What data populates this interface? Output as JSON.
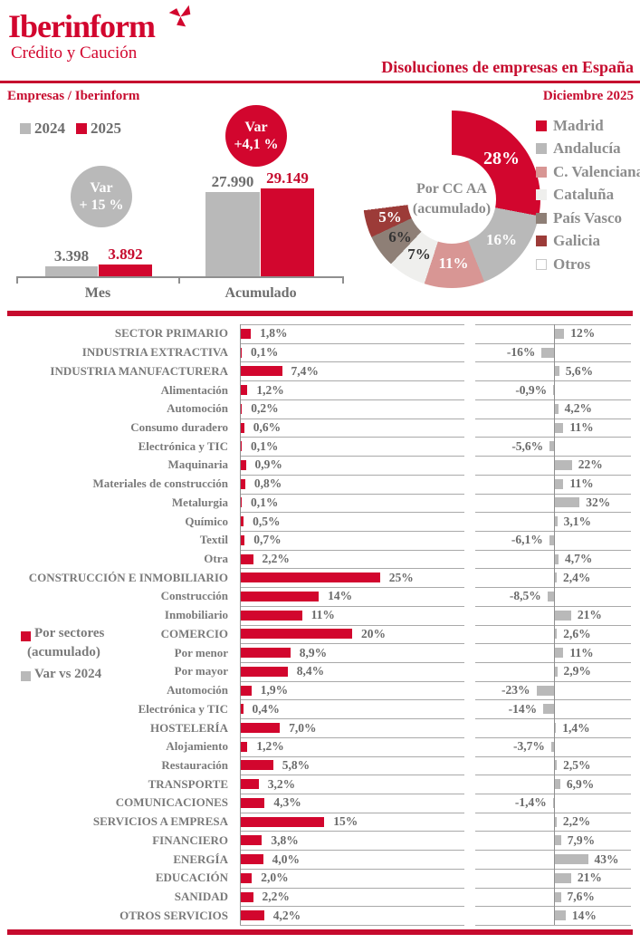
{
  "header": {
    "logo": "Iberinform",
    "logo_sub": "Crédito y Caución",
    "title": "Disoluciones de empresas en España",
    "left_sub": "Empresas / Iberinform",
    "right_sub": "Diciembre 2025"
  },
  "colors": {
    "brand_red": "#d2062e",
    "gray_bar": "#b9b9b9",
    "rose": "#d89694",
    "light_gray": "#efefed",
    "taupe": "#8e7f76",
    "maroon": "#9c3b38",
    "white": "#ffffff"
  },
  "chart_data": [
    {
      "type": "bar",
      "title": "Empresas / Iberinform",
      "categories": [
        "Mes",
        "Acumulado"
      ],
      "series": [
        {
          "name": "2024",
          "values": [
            3398,
            27990
          ],
          "labels": [
            "3.398",
            "27.990"
          ],
          "color": "#b9b9b9"
        },
        {
          "name": "2025",
          "values": [
            3892,
            29149
          ],
          "labels": [
            "3.892",
            "29.149"
          ],
          "color": "#d2062e"
        }
      ],
      "ylim": [
        0,
        29149
      ],
      "annotations": [
        {
          "line1": "Var",
          "line2": "+ 15 %",
          "group": "Mes",
          "color": "#b9b9b9"
        },
        {
          "line1": "Var",
          "line2": "+4,1 %",
          "group": "Acumulado",
          "color": "#d2062e"
        }
      ]
    },
    {
      "type": "pie",
      "center_label_line1": "Por CC AA",
      "center_label_line2": "(acumulado)",
      "labels": [
        "Madrid",
        "Andalucía",
        "C. Valenciana",
        "Cataluña",
        "País Vasco",
        "Galicia",
        "Otros"
      ],
      "values": [
        28,
        16,
        11,
        7,
        6,
        5,
        27
      ],
      "slice_labels": [
        "28%",
        "16%",
        "11%",
        "7%",
        "6%",
        "5%",
        ""
      ],
      "slice_colors": [
        "#d2062e",
        "#b9b9b9",
        "#d89694",
        "#efefed",
        "#8e7f76",
        "#9c3b38",
        "#ffffff"
      ],
      "slice_label_dark": [
        false,
        false,
        false,
        true,
        true,
        false,
        false
      ],
      "legend_position": "right"
    },
    {
      "type": "bar",
      "orientation": "horizontal",
      "legend": {
        "series1_line1": "Por sectores",
        "series1_line2": "(acumulado)",
        "series2": "Var vs 2024"
      },
      "rows": [
        {
          "label": "SECTOR PRIMARIO",
          "pct": 1.8,
          "pct_label": "1,8%",
          "var": 12,
          "var_label": "12%"
        },
        {
          "label": "INDUSTRIA EXTRACTIVA",
          "pct": 0.1,
          "pct_label": "0,1%",
          "var": -16,
          "var_label": "-16%"
        },
        {
          "label": "INDUSTRIA MANUFACTURERA",
          "pct": 7.4,
          "pct_label": "7,4%",
          "var": 5.6,
          "var_label": "5,6%"
        },
        {
          "label": "Alimentación",
          "pct": 1.2,
          "pct_label": "1,2%",
          "var": -0.9,
          "var_label": "-0,9%"
        },
        {
          "label": "Automoción",
          "pct": 0.2,
          "pct_label": "0,2%",
          "var": 4.2,
          "var_label": "4,2%"
        },
        {
          "label": "Consumo duradero",
          "pct": 0.6,
          "pct_label": "0,6%",
          "var": 11,
          "var_label": "11%"
        },
        {
          "label": "Electrónica y TIC",
          "pct": 0.1,
          "pct_label": "0,1%",
          "var": -5.6,
          "var_label": "-5,6%"
        },
        {
          "label": "Maquinaria",
          "pct": 0.9,
          "pct_label": "0,9%",
          "var": 22,
          "var_label": "22%"
        },
        {
          "label": "Materiales de construcción",
          "pct": 0.8,
          "pct_label": "0,8%",
          "var": 11,
          "var_label": "11%"
        },
        {
          "label": "Metalurgia",
          "pct": 0.1,
          "pct_label": "0,1%",
          "var": 32,
          "var_label": "32%"
        },
        {
          "label": "Químico",
          "pct": 0.5,
          "pct_label": "0,5%",
          "var": 3.1,
          "var_label": "3,1%"
        },
        {
          "label": "Textil",
          "pct": 0.7,
          "pct_label": "0,7%",
          "var": -6.1,
          "var_label": "-6,1%"
        },
        {
          "label": "Otra",
          "pct": 2.2,
          "pct_label": "2,2%",
          "var": 4.7,
          "var_label": "4,7%"
        },
        {
          "label": "CONSTRUCCIÓN E INMOBILIARIO",
          "pct": 25,
          "pct_label": "25%",
          "var": 2.4,
          "var_label": "2,4%"
        },
        {
          "label": "Construcción",
          "pct": 14,
          "pct_label": "14%",
          "var": -8.5,
          "var_label": "-8,5%"
        },
        {
          "label": "Inmobiliario",
          "pct": 11,
          "pct_label": "11%",
          "var": 21,
          "var_label": "21%"
        },
        {
          "label": "COMERCIO",
          "pct": 20,
          "pct_label": "20%",
          "var": 2.6,
          "var_label": "2,6%"
        },
        {
          "label": "Por menor",
          "pct": 8.9,
          "pct_label": "8,9%",
          "var": 11,
          "var_label": "11%"
        },
        {
          "label": "Por mayor",
          "pct": 8.4,
          "pct_label": "8,4%",
          "var": 2.9,
          "var_label": "2,9%"
        },
        {
          "label": "Automoción",
          "pct": 1.9,
          "pct_label": "1,9%",
          "var": -23,
          "var_label": "-23%"
        },
        {
          "label": "Electrónica y TIC",
          "pct": 0.4,
          "pct_label": "0,4%",
          "var": -14,
          "var_label": "-14%"
        },
        {
          "label": "HOSTELERÍA",
          "pct": 7.0,
          "pct_label": "7,0%",
          "var": 1.4,
          "var_label": "1,4%"
        },
        {
          "label": "Alojamiento",
          "pct": 1.2,
          "pct_label": "1,2%",
          "var": -3.7,
          "var_label": "-3,7%"
        },
        {
          "label": "Restauración",
          "pct": 5.8,
          "pct_label": "5,8%",
          "var": 2.5,
          "var_label": "2,5%"
        },
        {
          "label": "TRANSPORTE",
          "pct": 3.2,
          "pct_label": "3,2%",
          "var": 6.9,
          "var_label": "6,9%"
        },
        {
          "label": "COMUNICACIONES",
          "pct": 4.3,
          "pct_label": "4,3%",
          "var": -1.4,
          "var_label": "-1,4%"
        },
        {
          "label": "SERVICIOS A EMPRESA",
          "pct": 15,
          "pct_label": "15%",
          "var": 2.2,
          "var_label": "2,2%"
        },
        {
          "label": "FINANCIERO",
          "pct": 3.8,
          "pct_label": "3,8%",
          "var": 7.9,
          "var_label": "7,9%"
        },
        {
          "label": "ENERGÍA",
          "pct": 4.0,
          "pct_label": "4,0%",
          "var": 43,
          "var_label": "43%"
        },
        {
          "label": "EDUCACIÓN",
          "pct": 2.0,
          "pct_label": "2,0%",
          "var": 21,
          "var_label": "21%"
        },
        {
          "label": "SANIDAD",
          "pct": 2.2,
          "pct_label": "2,2%",
          "var": 7.6,
          "var_label": "7,6%"
        },
        {
          "label": "OTROS SERVICIOS",
          "pct": 4.2,
          "pct_label": "4,2%",
          "var": 14,
          "var_label": "14%"
        }
      ]
    }
  ]
}
